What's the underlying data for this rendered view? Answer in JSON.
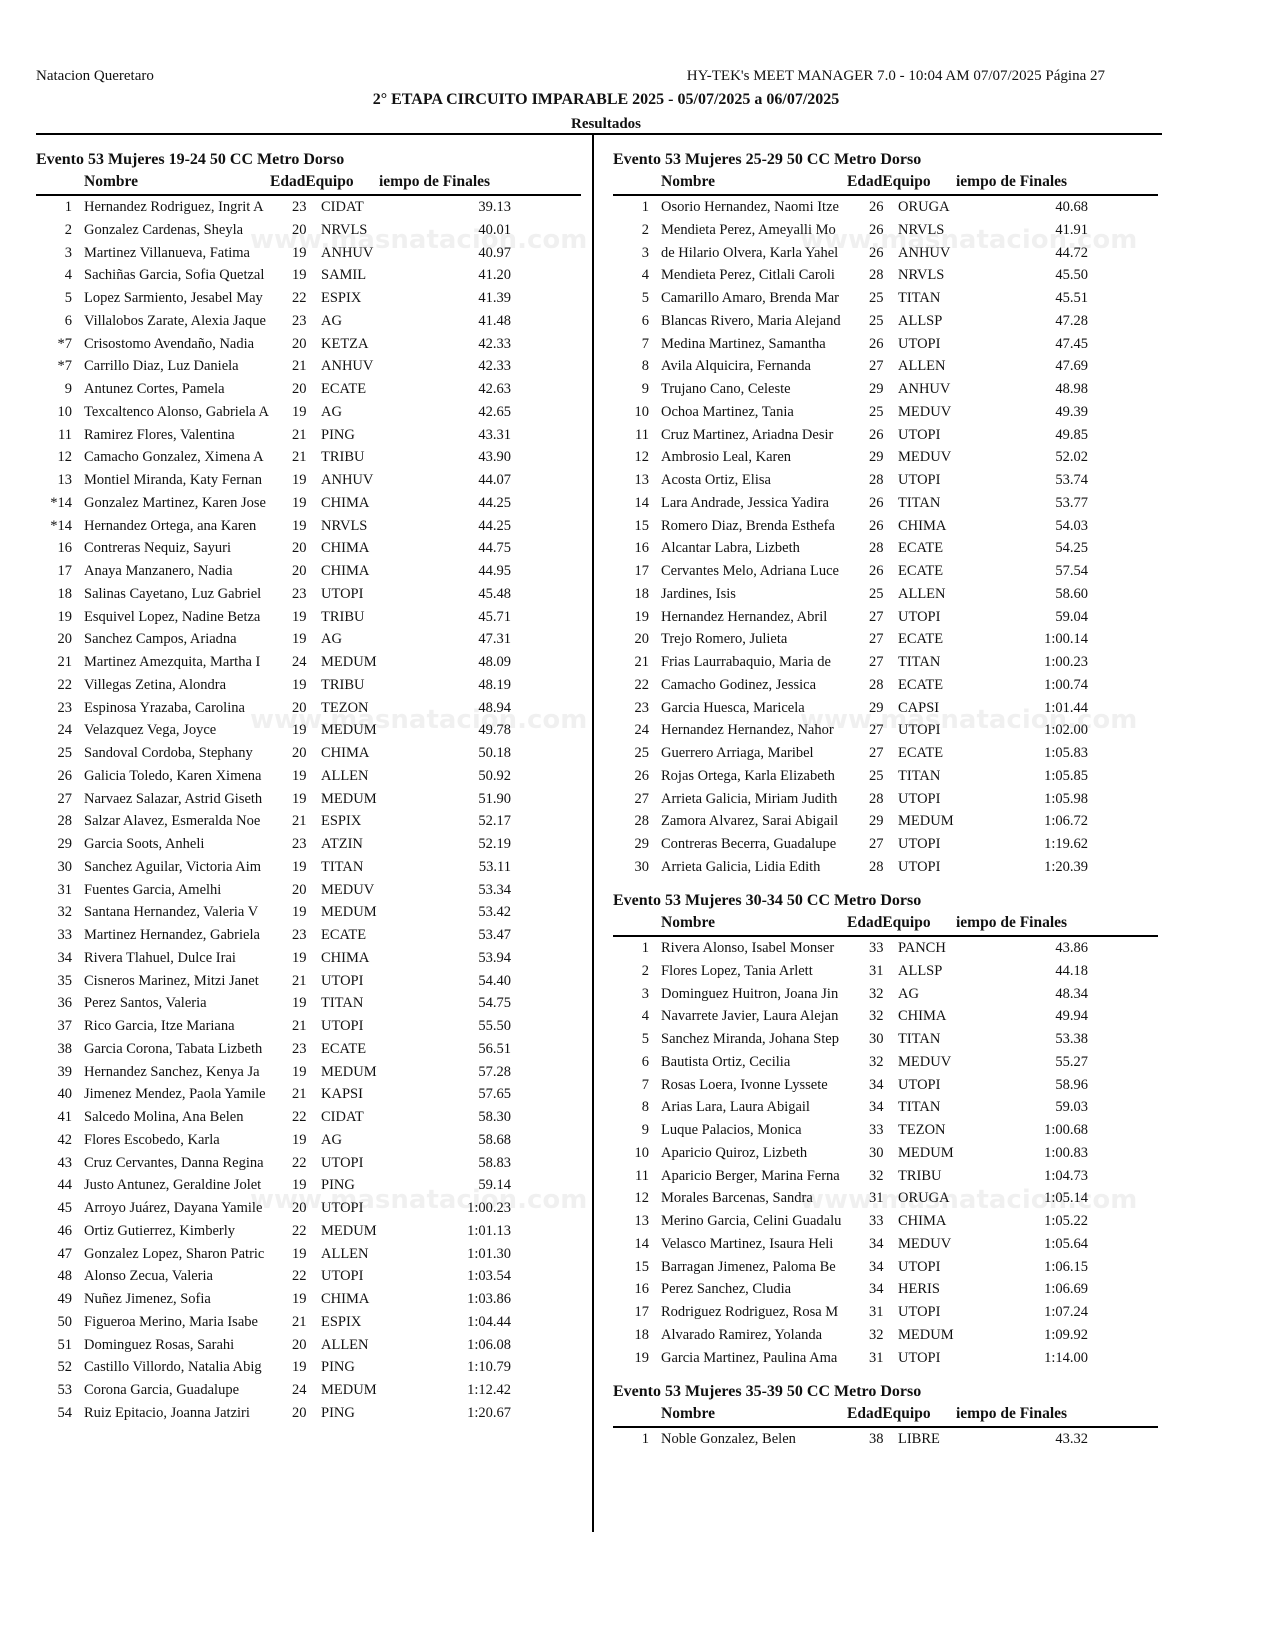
{
  "header": {
    "organization": "Natacion Queretaro",
    "software": "HY-TEK's MEET MANAGER 7.0 - 10:04 AM  07/07/2025  Página 27",
    "meet_title": "2° ETAPA CIRCUITO IMPARABLE 2025 - 05/07/2025 a 06/07/2025",
    "section": "Resultados"
  },
  "watermark": "www.masnatacion.com",
  "columns": {
    "name": "Nombre",
    "age_team": "EdadEquipo",
    "time": "iempo de Finales"
  },
  "events": [
    {
      "title": "Evento 53  Mujeres 19-24 50 CC Metro Dorso",
      "rows": [
        [
          "1",
          "Hernandez Rodriguez, Ingrit A",
          "23",
          "CIDAT",
          "39.13"
        ],
        [
          "2",
          "Gonzalez Cardenas, Sheyla",
          "20",
          "NRVLS",
          "40.01"
        ],
        [
          "3",
          "Martinez Villanueva, Fatima",
          "19",
          "ANHUV",
          "40.97"
        ],
        [
          "4",
          "Sachiñas Garcia, Sofia Quetzal",
          "19",
          "SAMIL",
          "41.20"
        ],
        [
          "5",
          "Lopez Sarmiento, Jesabel May",
          "22",
          "ESPIX",
          "41.39"
        ],
        [
          "6",
          "Villalobos Zarate, Alexia Jaque",
          "23",
          "AG",
          "41.48"
        ],
        [
          "*7",
          "Crisostomo Avendaño, Nadia",
          "20",
          "KETZA",
          "42.33"
        ],
        [
          "*7",
          "Carrillo Diaz, Luz Daniela",
          "21",
          "ANHUV",
          "42.33"
        ],
        [
          "9",
          "Antunez Cortes, Pamela",
          "20",
          "ECATE",
          "42.63"
        ],
        [
          "10",
          "Texcaltenco Alonso, Gabriela A",
          "19",
          "AG",
          "42.65"
        ],
        [
          "11",
          "Ramirez Flores, Valentina",
          "21",
          "PING",
          "43.31"
        ],
        [
          "12",
          "Camacho Gonzalez, Ximena A",
          "21",
          "TRIBU",
          "43.90"
        ],
        [
          "13",
          "Montiel Miranda, Katy Fernan",
          "19",
          "ANHUV",
          "44.07"
        ],
        [
          "*14",
          "Gonzalez Martinez, Karen Jose",
          "19",
          "CHIMA",
          "44.25"
        ],
        [
          "*14",
          "Hernandez Ortega, ana Karen",
          "19",
          "NRVLS",
          "44.25"
        ],
        [
          "16",
          "Contreras Nequiz, Sayuri",
          "20",
          "CHIMA",
          "44.75"
        ],
        [
          "17",
          "Anaya Manzanero, Nadia",
          "20",
          "CHIMA",
          "44.95"
        ],
        [
          "18",
          "Salinas Cayetano, Luz Gabriel",
          "23",
          "UTOPI",
          "45.48"
        ],
        [
          "19",
          "Esquivel Lopez, Nadine Betza",
          "19",
          "TRIBU",
          "45.71"
        ],
        [
          "20",
          "Sanchez Campos, Ariadna",
          "19",
          "AG",
          "47.31"
        ],
        [
          "21",
          "Martinez Amezquita, Martha I",
          "24",
          "MEDUM",
          "48.09"
        ],
        [
          "22",
          "Villegas Zetina, Alondra",
          "19",
          "TRIBU",
          "48.19"
        ],
        [
          "23",
          "Espinosa Yrazaba, Carolina",
          "20",
          "TEZON",
          "48.94"
        ],
        [
          "24",
          "Velazquez Vega, Joyce",
          "19",
          "MEDUM",
          "49.78"
        ],
        [
          "25",
          "Sandoval Cordoba, Stephany",
          "20",
          "CHIMA",
          "50.18"
        ],
        [
          "26",
          "Galicia Toledo, Karen Ximena",
          "19",
          "ALLEN",
          "50.92"
        ],
        [
          "27",
          "Narvaez Salazar, Astrid Giseth",
          "19",
          "MEDUM",
          "51.90"
        ],
        [
          "28",
          "Salzar Alavez, Esmeralda Noe",
          "21",
          "ESPIX",
          "52.17"
        ],
        [
          "29",
          "Garcia Soots, Anheli",
          "23",
          "ATZIN",
          "52.19"
        ],
        [
          "30",
          "Sanchez Aguilar, Victoria Aim",
          "19",
          "TITAN",
          "53.11"
        ],
        [
          "31",
          "Fuentes Garcia, Amelhi",
          "20",
          "MEDUV",
          "53.34"
        ],
        [
          "32",
          "Santana Hernandez, Valeria V",
          "19",
          "MEDUM",
          "53.42"
        ],
        [
          "33",
          "Martinez Hernandez, Gabriela",
          "23",
          "ECATE",
          "53.47"
        ],
        [
          "34",
          "Rivera Tlahuel, Dulce Irai",
          "19",
          "CHIMA",
          "53.94"
        ],
        [
          "35",
          "Cisneros Marinez, Mitzi Janet",
          "21",
          "UTOPI",
          "54.40"
        ],
        [
          "36",
          "Perez Santos, Valeria",
          "19",
          "TITAN",
          "54.75"
        ],
        [
          "37",
          "Rico Garcia, Itze Mariana",
          "21",
          "UTOPI",
          "55.50"
        ],
        [
          "38",
          "Garcia Corona, Tabata Lizbeth",
          "23",
          "ECATE",
          "56.51"
        ],
        [
          "39",
          "Hernandez Sanchez, Kenya Ja",
          "19",
          "MEDUM",
          "57.28"
        ],
        [
          "40",
          "Jimenez Mendez, Paola Yamile",
          "21",
          "KAPSI",
          "57.65"
        ],
        [
          "41",
          "Salcedo Molina, Ana Belen",
          "22",
          "CIDAT",
          "58.30"
        ],
        [
          "42",
          "Flores Escobedo, Karla",
          "19",
          "AG",
          "58.68"
        ],
        [
          "43",
          "Cruz Cervantes, Danna Regina",
          "22",
          "UTOPI",
          "58.83"
        ],
        [
          "44",
          "Justo Antunez, Geraldine Jolet",
          "19",
          "PING",
          "59.14"
        ],
        [
          "45",
          "Arroyo Juárez, Dayana Yamile",
          "20",
          "UTOPI",
          "1:00.23"
        ],
        [
          "46",
          "Ortiz Gutierrez, Kimberly",
          "22",
          "MEDUM",
          "1:01.13"
        ],
        [
          "47",
          "Gonzalez Lopez, Sharon Patric",
          "19",
          "ALLEN",
          "1:01.30"
        ],
        [
          "48",
          "Alonso Zecua, Valeria",
          "22",
          "UTOPI",
          "1:03.54"
        ],
        [
          "49",
          "Nuñez Jimenez, Sofia",
          "19",
          "CHIMA",
          "1:03.86"
        ],
        [
          "50",
          "Figueroa Merino, Maria Isabe",
          "21",
          "ESPIX",
          "1:04.44"
        ],
        [
          "51",
          "Dominguez Rosas, Sarahi",
          "20",
          "ALLEN",
          "1:06.08"
        ],
        [
          "52",
          "Castillo Villordo, Natalia Abig",
          "19",
          "PING",
          "1:10.79"
        ],
        [
          "53",
          "Corona Garcia, Guadalupe",
          "24",
          "MEDUM",
          "1:12.42"
        ],
        [
          "54",
          "Ruiz Epitacio, Joanna Jatziri",
          "20",
          "PING",
          "1:20.67"
        ]
      ]
    },
    {
      "title": "Evento 53  Mujeres 25-29 50 CC Metro Dorso",
      "rows": [
        [
          "1",
          "Osorio Hernandez, Naomi Itze",
          "26",
          "ORUGA",
          "40.68"
        ],
        [
          "2",
          "Mendieta Perez, Ameyalli Mo",
          "26",
          "NRVLS",
          "41.91"
        ],
        [
          "3",
          "de Hilario Olvera, Karla Yahel",
          "26",
          "ANHUV",
          "44.72"
        ],
        [
          "4",
          "Mendieta Perez, Citlali Caroli",
          "28",
          "NRVLS",
          "45.50"
        ],
        [
          "5",
          "Camarillo Amaro, Brenda Mar",
          "25",
          "TITAN",
          "45.51"
        ],
        [
          "6",
          "Blancas Rivero, Maria Alejand",
          "25",
          "ALLSP",
          "47.28"
        ],
        [
          "7",
          "Medina Martinez, Samantha",
          "26",
          "UTOPI",
          "47.45"
        ],
        [
          "8",
          "Avila Alquicira, Fernanda",
          "27",
          "ALLEN",
          "47.69"
        ],
        [
          "9",
          "Trujano Cano, Celeste",
          "29",
          "ANHUV",
          "48.98"
        ],
        [
          "10",
          "Ochoa Martinez, Tania",
          "25",
          "MEDUV",
          "49.39"
        ],
        [
          "11",
          "Cruz Martinez, Ariadna Desir",
          "26",
          "UTOPI",
          "49.85"
        ],
        [
          "12",
          "Ambrosio Leal, Karen",
          "29",
          "MEDUV",
          "52.02"
        ],
        [
          "13",
          "Acosta Ortiz, Elisa",
          "28",
          "UTOPI",
          "53.74"
        ],
        [
          "14",
          "Lara Andrade, Jessica Yadira",
          "26",
          "TITAN",
          "53.77"
        ],
        [
          "15",
          "Romero Diaz, Brenda Esthefa",
          "26",
          "CHIMA",
          "54.03"
        ],
        [
          "16",
          "Alcantar Labra, Lizbeth",
          "28",
          "ECATE",
          "54.25"
        ],
        [
          "17",
          "Cervantes Melo, Adriana Luce",
          "26",
          "ECATE",
          "57.54"
        ],
        [
          "18",
          "Jardines, Isis",
          "25",
          "ALLEN",
          "58.60"
        ],
        [
          "19",
          "Hernandez Hernandez, Abril",
          "27",
          "UTOPI",
          "59.04"
        ],
        [
          "20",
          "Trejo Romero, Julieta",
          "27",
          "ECATE",
          "1:00.14"
        ],
        [
          "21",
          "Frias Laurrabaquio, Maria de",
          "27",
          "TITAN",
          "1:00.23"
        ],
        [
          "22",
          "Camacho Godinez, Jessica",
          "28",
          "ECATE",
          "1:00.74"
        ],
        [
          "23",
          "Garcia Huesca, Maricela",
          "29",
          "CAPSI",
          "1:01.44"
        ],
        [
          "24",
          "Hernandez Hernandez, Nahor",
          "27",
          "UTOPI",
          "1:02.00"
        ],
        [
          "25",
          "Guerrero Arriaga, Maribel",
          "27",
          "ECATE",
          "1:05.83"
        ],
        [
          "26",
          "Rojas Ortega, Karla Elizabeth",
          "25",
          "TITAN",
          "1:05.85"
        ],
        [
          "27",
          "Arrieta Galicia, Miriam Judith",
          "28",
          "UTOPI",
          "1:05.98"
        ],
        [
          "28",
          "Zamora Alvarez, Sarai Abigail",
          "29",
          "MEDUM",
          "1:06.72"
        ],
        [
          "29",
          "Contreras Becerra, Guadalupe",
          "27",
          "UTOPI",
          "1:19.62"
        ],
        [
          "30",
          "Arrieta Galicia, Lidia Edith",
          "28",
          "UTOPI",
          "1:20.39"
        ]
      ]
    },
    {
      "title": "Evento 53  Mujeres 30-34 50 CC Metro Dorso",
      "rows": [
        [
          "1",
          "Rivera Alonso, Isabel Monser",
          "33",
          "PANCH",
          "43.86"
        ],
        [
          "2",
          "Flores Lopez, Tania Arlett",
          "31",
          "ALLSP",
          "44.18"
        ],
        [
          "3",
          "Dominguez Huitron, Joana Jin",
          "32",
          "AG",
          "48.34"
        ],
        [
          "4",
          "Navarrete Javier, Laura Alejan",
          "32",
          "CHIMA",
          "49.94"
        ],
        [
          "5",
          "Sanchez Miranda, Johana Step",
          "30",
          "TITAN",
          "53.38"
        ],
        [
          "6",
          "Bautista Ortiz, Cecilia",
          "32",
          "MEDUV",
          "55.27"
        ],
        [
          "7",
          "Rosas Loera, Ivonne Lyssete",
          "34",
          "UTOPI",
          "58.96"
        ],
        [
          "8",
          "Arias Lara, Laura Abigail",
          "34",
          "TITAN",
          "59.03"
        ],
        [
          "9",
          "Luque Palacios, Monica",
          "33",
          "TEZON",
          "1:00.68"
        ],
        [
          "10",
          "Aparicio Quiroz, Lizbeth",
          "30",
          "MEDUM",
          "1:00.83"
        ],
        [
          "11",
          "Aparicio Berger, Marina Ferna",
          "32",
          "TRIBU",
          "1:04.73"
        ],
        [
          "12",
          "Morales Barcenas, Sandra",
          "31",
          "ORUGA",
          "1:05.14"
        ],
        [
          "13",
          "Merino Garcia, Celini Guadalu",
          "33",
          "CHIMA",
          "1:05.22"
        ],
        [
          "14",
          "Velasco Martinez, Isaura Heli",
          "34",
          "MEDUV",
          "1:05.64"
        ],
        [
          "15",
          "Barragan Jimenez, Paloma Be",
          "34",
          "UTOPI",
          "1:06.15"
        ],
        [
          "16",
          "Perez Sanchez, Cludia",
          "34",
          "HERIS",
          "1:06.69"
        ],
        [
          "17",
          "Rodriguez Rodriguez, Rosa M",
          "31",
          "UTOPI",
          "1:07.24"
        ],
        [
          "18",
          "Alvarado Ramirez, Yolanda",
          "32",
          "MEDUM",
          "1:09.92"
        ],
        [
          "19",
          "Garcia Martinez, Paulina Ama",
          "31",
          "UTOPI",
          "1:14.00"
        ]
      ]
    },
    {
      "title": "Evento 53  Mujeres 35-39 50 CC Metro Dorso",
      "rows": [
        [
          "1",
          "Noble Gonzalez, Belen",
          "38",
          "LIBRE",
          "43.32"
        ]
      ]
    }
  ]
}
